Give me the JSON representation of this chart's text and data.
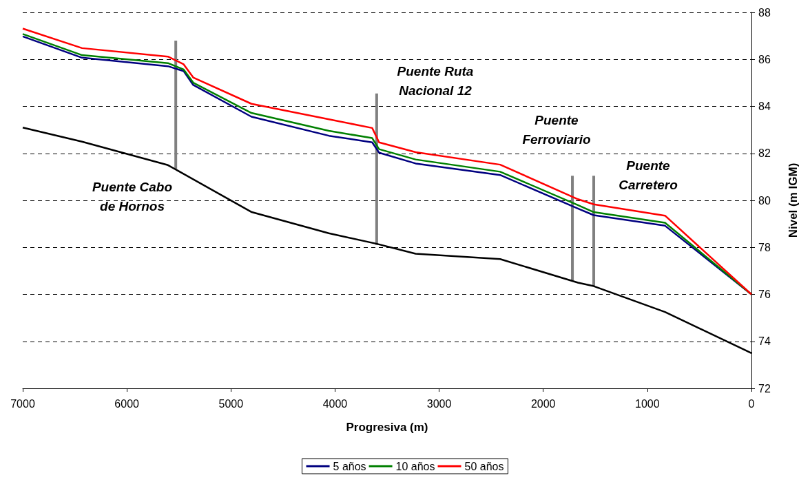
{
  "chart_data": {
    "type": "line",
    "xlabel": "Progresiva (m)",
    "ylabel": "Nivel (m IGM)",
    "xlim": [
      7000,
      0
    ],
    "xticks": [
      7000,
      6000,
      5000,
      4000,
      3000,
      2000,
      1000,
      0
    ],
    "ylim": [
      72,
      88
    ],
    "yticks": [
      72,
      74,
      76,
      78,
      80,
      82,
      84,
      86,
      88
    ],
    "grid": "y",
    "legend": "bottom",
    "marker": "none",
    "line_style": "solid",
    "series": [
      {
        "color": "#000000",
        "x": [
          7000,
          6430,
          5605,
          4800,
          4060,
          3598,
          3226,
          2414,
          1667,
          1515,
          830,
          0
        ],
        "values": [
          83.1,
          82.5,
          81.5,
          79.5,
          78.6,
          78.15,
          77.73,
          77.5,
          76.5,
          76.35,
          75.25,
          73.5
        ]
      },
      {
        "name": "5 años",
        "color": "#000080",
        "x": [
          7000,
          6430,
          5605,
          5454,
          5362,
          4803,
          4059,
          3643,
          3577,
          3226,
          2414,
          1667,
          1515,
          830,
          0
        ],
        "values": [
          86.98,
          86.07,
          85.71,
          85.5,
          84.91,
          83.56,
          82.75,
          82.47,
          82.03,
          81.57,
          81.08,
          79.65,
          79.37,
          78.92,
          76
        ]
      },
      {
        "name": "10 años",
        "color": "#008000",
        "x": [
          7000,
          6430,
          5605,
          5454,
          5362,
          4803,
          4059,
          3643,
          3577,
          3226,
          2414,
          1667,
          1515,
          830,
          0
        ],
        "values": [
          87.08,
          86.18,
          85.84,
          85.57,
          85.01,
          83.72,
          82.96,
          82.65,
          82.18,
          81.74,
          81.22,
          79.8,
          79.5,
          79.05,
          76
        ]
      },
      {
        "name": "50 años",
        "color": "#ff0000",
        "x": [
          7000,
          6430,
          5605,
          5454,
          5362,
          4803,
          4059,
          3643,
          3577,
          3226,
          2414,
          1667,
          1515,
          830,
          0
        ],
        "values": [
          87.31,
          86.48,
          86.12,
          85.79,
          85.23,
          84.11,
          83.45,
          83.08,
          82.47,
          82.05,
          81.52,
          80.05,
          79.83,
          79.35,
          76
        ]
      },
      {
        "color": "#808080",
        "x": [
          5530,
          5530
        ],
        "values": [
          81.35,
          86.8
        ]
      },
      {
        "color": "#808080",
        "x": [
          3600,
          3600
        ],
        "values": [
          78.1,
          84.55
        ]
      },
      {
        "color": "#808080",
        "x": [
          1720,
          1720
        ],
        "values": [
          76.6,
          81.05
        ]
      },
      {
        "color": "#808080",
        "x": [
          1515,
          1515
        ],
        "values": [
          76.35,
          81.05
        ]
      }
    ],
    "annotations": [
      "Puente Cabo\nde Hornos",
      "Puente Ruta\nNacional 12",
      "Puente\nFerroviario",
      "Puente\nCarretero"
    ]
  }
}
